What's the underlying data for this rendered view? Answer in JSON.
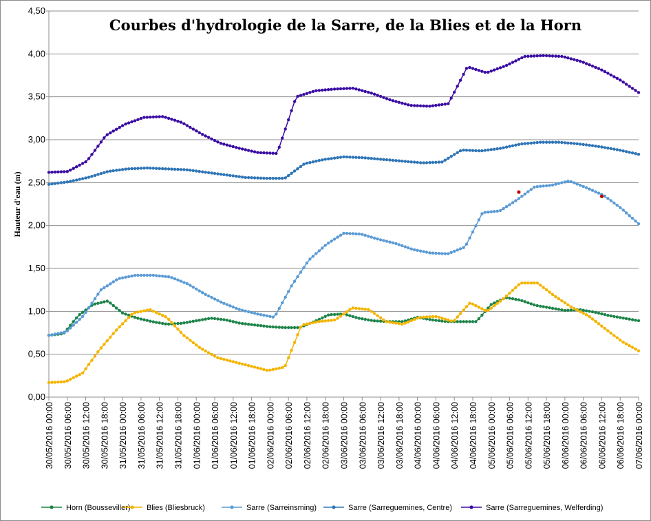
{
  "chart_data": {
    "type": "line",
    "title": "Courbes d'hydrologie de la Sarre, de la Blies et de la Horn",
    "xlabel": "",
    "ylabel": "Hauteur d'eau (m)",
    "ylim": [
      0,
      4.5
    ],
    "yticks": [
      "0,00",
      "0,50",
      "1,00",
      "1,50",
      "2,00",
      "2,50",
      "3,00",
      "3,50",
      "4,00",
      "4,50"
    ],
    "x_start": "30/05/2016 00:00",
    "x_end": "07/06/2016 00:00",
    "x_step_hours": 6,
    "xticks": [
      "30/05/2016  00:00",
      "30/05/2016  06:00",
      "30/05/2016  12:00",
      "30/05/2016  18:00",
      "31/05/2016  00:00",
      "31/05/2016  06:00",
      "31/05/2016  12:00",
      "31/05/2016  18:00",
      "01/06/2016  00:00",
      "01/06/2016  06:00",
      "01/06/2016  12:00",
      "01/06/2016  18:00",
      "02/06/2016  00:00",
      "02/06/2016  06:00",
      "02/06/2016  12:00",
      "02/06/2016  18:00",
      "03/06/2016  00:00",
      "03/06/2016  06:00",
      "03/06/2016  12:00",
      "03/06/2016  18:00",
      "04/06/2016  00:00",
      "04/06/2016  06:00",
      "04/06/2016  12:00",
      "04/06/2016  18:00",
      "05/06/2016  00:00",
      "05/06/2016  06:00",
      "05/06/2016  12:00",
      "05/06/2016  18:00",
      "06/06/2016  00:00",
      "06/06/2016  06:00",
      "06/06/2016  12:00",
      "06/06/2016  18:00",
      "07/06/2016  00:00"
    ],
    "grid": true,
    "legend_position": "bottom",
    "series": [
      {
        "name": "Horn (Bousseviller)",
        "color": "#1e8449",
        "values": [
          0.72,
          0.74,
          0.95,
          1.08,
          1.12,
          0.98,
          0.92,
          0.88,
          0.85,
          0.86,
          0.89,
          0.92,
          0.9,
          0.86,
          0.84,
          0.82,
          0.81,
          0.81,
          0.88,
          0.96,
          0.97,
          0.92,
          0.89,
          0.88,
          0.88,
          0.93,
          0.9,
          0.88,
          0.88,
          0.88,
          1.08,
          1.16,
          1.13,
          1.07,
          1.04,
          1.01,
          1.02,
          0.99,
          0.95,
          0.92,
          0.89
        ]
      },
      {
        "name": "Blies (Bliesbruck)",
        "color": "#f4b400",
        "values": [
          0.17,
          0.18,
          0.28,
          0.55,
          0.78,
          0.98,
          1.02,
          0.93,
          0.72,
          0.57,
          0.46,
          0.41,
          0.36,
          0.31,
          0.35,
          0.84,
          0.88,
          0.9,
          1.04,
          1.02,
          0.88,
          0.85,
          0.93,
          0.94,
          0.88,
          1.1,
          1.0,
          1.15,
          1.33,
          1.33,
          1.18,
          1.05,
          0.95,
          0.8,
          0.65,
          0.54
        ]
      },
      {
        "name": "Sarre (Sarreinsming)",
        "color": "#5b9bd5",
        "values": [
          0.72,
          0.76,
          0.95,
          1.25,
          1.38,
          1.42,
          1.42,
          1.4,
          1.32,
          1.2,
          1.1,
          1.02,
          0.97,
          0.93,
          1.3,
          1.6,
          1.78,
          1.91,
          1.9,
          1.84,
          1.79,
          1.72,
          1.68,
          1.67,
          1.75,
          2.15,
          2.17,
          2.3,
          2.45,
          2.47,
          2.52,
          2.44,
          2.35,
          2.2,
          2.02
        ]
      },
      {
        "name": "Sarre (Sarreguemines, Centre)",
        "color": "#2e75b6",
        "values": [
          2.48,
          2.51,
          2.56,
          2.63,
          2.66,
          2.67,
          2.66,
          2.65,
          2.62,
          2.59,
          2.56,
          2.55,
          2.55,
          2.72,
          2.77,
          2.8,
          2.79,
          2.77,
          2.75,
          2.73,
          2.74,
          2.88,
          2.87,
          2.9,
          2.95,
          2.97,
          2.97,
          2.95,
          2.92,
          2.88,
          2.83
        ]
      },
      {
        "name": "Sarre (Sarreguemines, Welferding)",
        "color": "#3b0ca3",
        "values": [
          2.62,
          2.63,
          2.75,
          3.05,
          3.18,
          3.26,
          3.27,
          3.2,
          3.07,
          2.96,
          2.9,
          2.85,
          2.84,
          3.5,
          3.57,
          3.59,
          3.6,
          3.54,
          3.46,
          3.4,
          3.39,
          3.42,
          3.85,
          3.78,
          3.86,
          3.97,
          3.98,
          3.97,
          3.91,
          3.82,
          3.7,
          3.55
        ]
      }
    ],
    "highlighted_points": [
      {
        "series": "Sarre (Sarreinsming)",
        "x": "05/06/2016 09:00",
        "y": 2.39,
        "color": "#c00000"
      },
      {
        "series": "Sarre (Sarreinsming)",
        "x": "06/06/2016 12:00",
        "y": 2.34,
        "color": "#c00000"
      }
    ]
  }
}
